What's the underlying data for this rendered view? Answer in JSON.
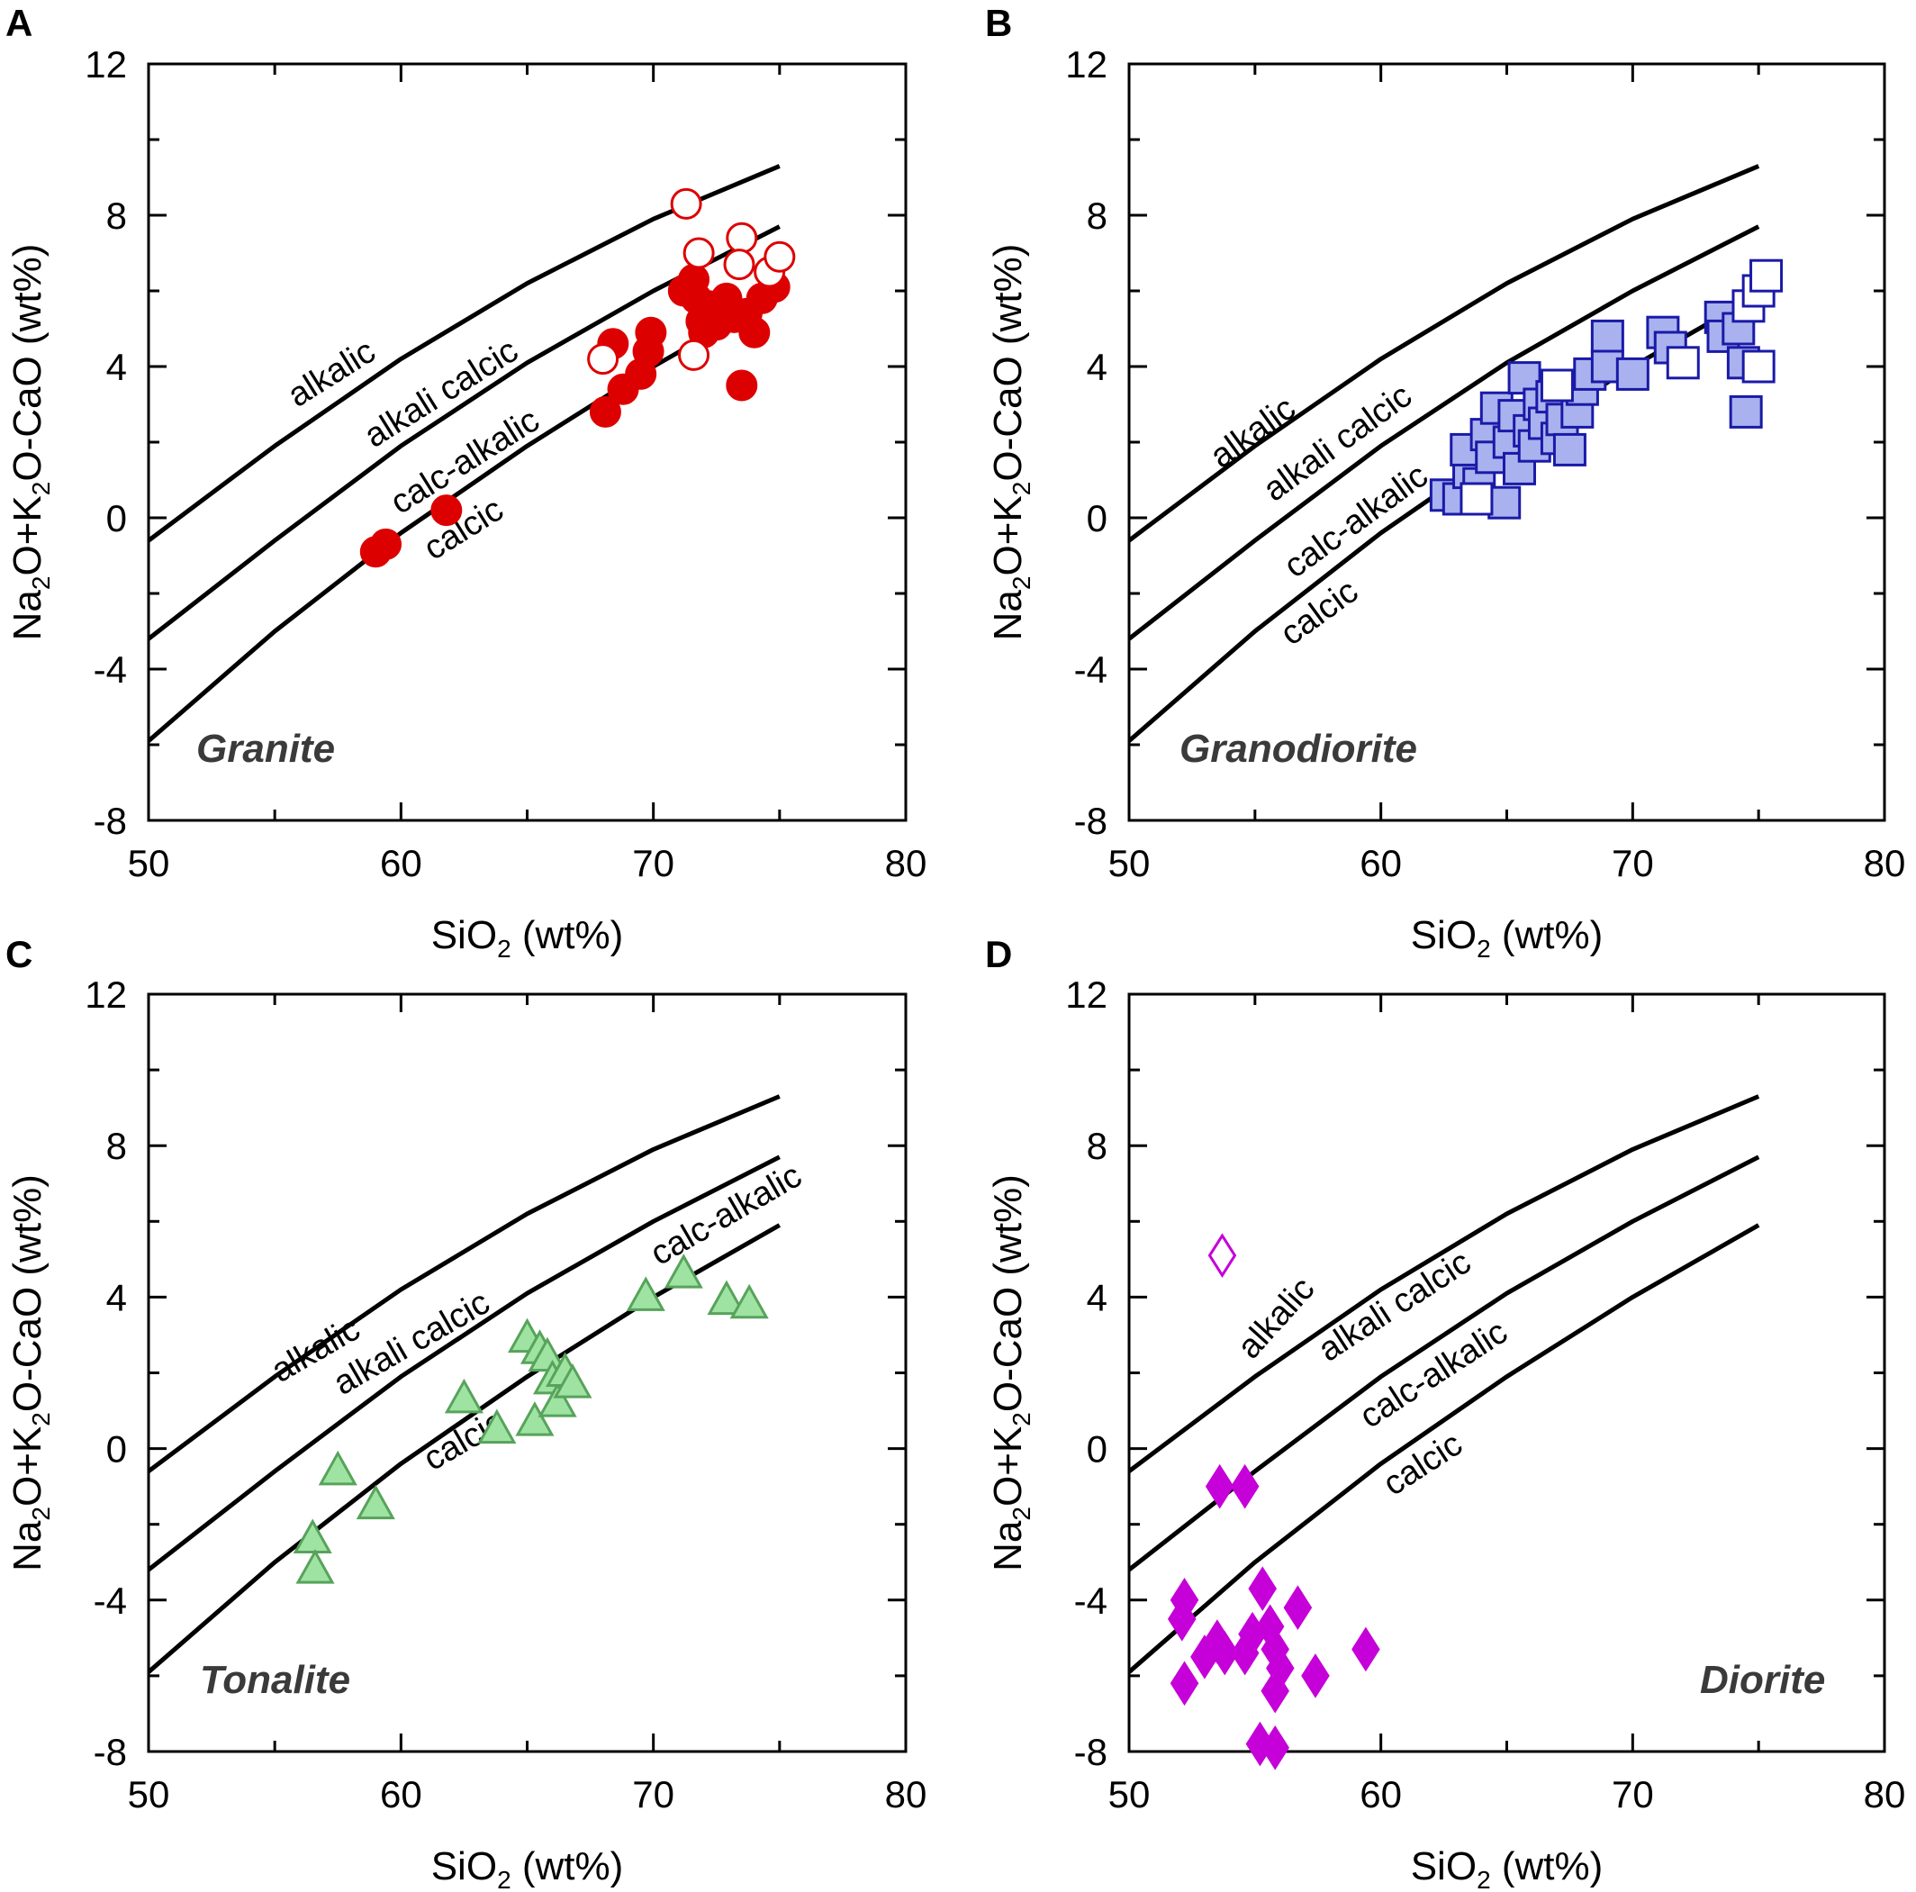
{
  "figure": {
    "panels": [
      {
        "id": "A",
        "rock": "Granite"
      },
      {
        "id": "B",
        "rock": "Granodiorite"
      },
      {
        "id": "C",
        "rock": "Tonalite"
      },
      {
        "id": "D",
        "rock": "Diorite"
      }
    ],
    "xlabel_main": "SiO",
    "xlabel_sub": "2",
    "xlabel_rest": " (wt%)",
    "ylabel_parts": [
      "Na",
      "2",
      "O+K",
      "2",
      "O-CaO (wt%)"
    ],
    "xticks": [
      "50",
      "60",
      "70",
      "80"
    ],
    "yticks": [
      "12",
      "8",
      "4",
      "0",
      "-4",
      "-8"
    ],
    "curve_labels": [
      "alkalic",
      "alkali calcic",
      "calc-alkalic",
      "calcic"
    ],
    "colors": {
      "granite": "#dd0000",
      "granodiorite_fill": "#a9b2ee",
      "granodiorite_edge": "#1a1aa8",
      "tonalite_fill": "#9fe3a3",
      "tonalite_edge": "#57a35b",
      "diorite": "#c500d8",
      "curves": "#000000"
    }
  },
  "chart_data": [
    {
      "type": "scatter",
      "panel": "A",
      "title": "Granite",
      "xlabel": "SiO2 (wt%)",
      "ylabel": "Na2O+K2O-CaO (wt%)",
      "xlim": [
        50,
        80
      ],
      "ylim": [
        -8,
        12
      ],
      "curves": [
        {
          "name": "alkalic",
          "x": [
            50,
            55,
            60,
            65,
            70,
            75
          ],
          "y": [
            -0.6,
            1.9,
            4.2,
            6.2,
            7.9,
            9.3
          ]
        },
        {
          "name": "alkali calcic",
          "x": [
            50,
            55,
            60,
            65,
            70,
            75
          ],
          "y": [
            -3.2,
            -0.6,
            1.9,
            4.1,
            6.0,
            7.7
          ]
        },
        {
          "name": "calc-alkalic",
          "x": [
            50,
            55,
            60,
            65,
            70,
            75
          ],
          "y": [
            -5.9,
            -3.0,
            -0.4,
            1.9,
            4.0,
            5.9
          ]
        }
      ],
      "series": [
        {
          "name": "filled circles",
          "marker": "circle",
          "filled": true,
          "points": [
            [
              59.0,
              -0.9
            ],
            [
              59.4,
              -0.7
            ],
            [
              61.8,
              0.2
            ],
            [
              68.1,
              2.8
            ],
            [
              68.4,
              4.6
            ],
            [
              68.8,
              3.4
            ],
            [
              69.5,
              3.8
            ],
            [
              69.8,
              4.4
            ],
            [
              69.9,
              4.9
            ],
            [
              71.2,
              6.0
            ],
            [
              71.6,
              6.3
            ],
            [
              71.7,
              5.8
            ],
            [
              71.9,
              5.2
            ],
            [
              72.0,
              4.9
            ],
            [
              72.2,
              5.6
            ],
            [
              72.5,
              5.1
            ],
            [
              72.9,
              5.8
            ],
            [
              73.2,
              5.3
            ],
            [
              73.5,
              3.5
            ],
            [
              73.7,
              5.4
            ],
            [
              74.0,
              4.9
            ],
            [
              74.3,
              5.8
            ],
            [
              74.8,
              6.1
            ]
          ]
        },
        {
          "name": "open circles",
          "marker": "circle",
          "filled": false,
          "points": [
            [
              71.3,
              8.3
            ],
            [
              71.8,
              7.0
            ],
            [
              73.5,
              7.4
            ],
            [
              73.4,
              6.7
            ],
            [
              74.6,
              6.5
            ],
            [
              75.0,
              6.9
            ],
            [
              68.0,
              4.2
            ],
            [
              71.6,
              4.3
            ]
          ]
        }
      ]
    },
    {
      "type": "scatter",
      "panel": "B",
      "title": "Granodiorite",
      "xlabel": "SiO2 (wt%)",
      "ylabel": "Na2O+K2O-CaO (wt%)",
      "xlim": [
        50,
        80
      ],
      "ylim": [
        -8,
        12
      ],
      "curves": [
        {
          "name": "alkalic",
          "x": [
            50,
            55,
            60,
            65,
            70,
            75
          ],
          "y": [
            -0.6,
            1.9,
            4.2,
            6.2,
            7.9,
            9.3
          ]
        },
        {
          "name": "alkali calcic",
          "x": [
            50,
            55,
            60,
            65,
            70,
            75
          ],
          "y": [
            -3.2,
            -0.6,
            1.9,
            4.1,
            6.0,
            7.7
          ]
        },
        {
          "name": "calc-alkalic",
          "x": [
            50,
            55,
            60,
            65,
            70,
            75
          ],
          "y": [
            -5.9,
            -3.0,
            -0.4,
            1.9,
            4.0,
            5.9
          ]
        }
      ],
      "series": [
        {
          "name": "filled squares",
          "marker": "square",
          "filled": true,
          "points": [
            [
              62.6,
              0.6
            ],
            [
              63.1,
              0.5
            ],
            [
              63.5,
              1.2
            ],
            [
              63.4,
              1.8
            ],
            [
              63.9,
              0.9
            ],
            [
              64.2,
              2.2
            ],
            [
              64.4,
              1.6
            ],
            [
              64.6,
              2.9
            ],
            [
              64.9,
              0.4
            ],
            [
              65.1,
              2.0
            ],
            [
              65.3,
              2.7
            ],
            [
              65.5,
              1.3
            ],
            [
              65.7,
              3.7
            ],
            [
              65.9,
              2.3
            ],
            [
              66.1,
              1.9
            ],
            [
              66.3,
              3.0
            ],
            [
              66.5,
              2.5
            ],
            [
              66.8,
              3.2
            ],
            [
              67.0,
              2.1
            ],
            [
              67.2,
              2.6
            ],
            [
              67.5,
              1.8
            ],
            [
              67.8,
              2.8
            ],
            [
              68.0,
              3.4
            ],
            [
              68.3,
              3.8
            ],
            [
              69.0,
              4.8
            ],
            [
              69.0,
              4.0
            ],
            [
              70.0,
              3.8
            ],
            [
              71.2,
              4.9
            ],
            [
              71.5,
              4.5
            ],
            [
              73.5,
              5.3
            ],
            [
              73.6,
              4.8
            ],
            [
              74.2,
              5.0
            ],
            [
              74.4,
              4.1
            ],
            [
              74.5,
              2.8
            ]
          ]
        },
        {
          "name": "open squares",
          "marker": "square",
          "filled": false,
          "points": [
            [
              72.0,
              4.1
            ],
            [
              74.6,
              5.6
            ],
            [
              75.0,
              6.0
            ],
            [
              75.3,
              6.4
            ],
            [
              75.0,
              4.0
            ],
            [
              63.8,
              0.5
            ],
            [
              67.0,
              3.5
            ]
          ]
        }
      ]
    },
    {
      "type": "scatter",
      "panel": "C",
      "title": "Tonalite",
      "xlabel": "SiO2 (wt%)",
      "ylabel": "Na2O+K2O-CaO (wt%)",
      "xlim": [
        50,
        80
      ],
      "ylim": [
        -8,
        12
      ],
      "curves": [
        {
          "name": "alkalic",
          "x": [
            50,
            55,
            60,
            65,
            70,
            75
          ],
          "y": [
            -0.6,
            1.9,
            4.2,
            6.2,
            7.9,
            9.3
          ]
        },
        {
          "name": "alkali calcic",
          "x": [
            50,
            55,
            60,
            65,
            70,
            75
          ],
          "y": [
            -3.2,
            -0.6,
            1.9,
            4.1,
            6.0,
            7.7
          ]
        },
        {
          "name": "calc-alkalic",
          "x": [
            50,
            55,
            60,
            65,
            70,
            75
          ],
          "y": [
            -5.9,
            -3.0,
            -0.4,
            1.9,
            4.0,
            5.9
          ]
        }
      ],
      "series": [
        {
          "name": "triangles",
          "marker": "triangle",
          "filled": true,
          "points": [
            [
              56.5,
              -2.4
            ],
            [
              56.6,
              -3.2
            ],
            [
              57.5,
              -0.6
            ],
            [
              59.0,
              -1.5
            ],
            [
              62.5,
              1.3
            ],
            [
              63.8,
              0.5
            ],
            [
              65.0,
              2.9
            ],
            [
              65.3,
              0.7
            ],
            [
              65.5,
              2.6
            ],
            [
              65.8,
              2.4
            ],
            [
              66.0,
              1.8
            ],
            [
              66.2,
              1.2
            ],
            [
              66.5,
              2.0
            ],
            [
              66.8,
              1.7
            ],
            [
              69.7,
              4.0
            ],
            [
              71.2,
              4.6
            ],
            [
              72.9,
              3.9
            ],
            [
              73.8,
              3.8
            ]
          ]
        }
      ]
    },
    {
      "type": "scatter",
      "panel": "D",
      "title": "Diorite",
      "xlabel": "SiO2 (wt%)",
      "ylabel": "Na2O+K2O-CaO (wt%)",
      "xlim": [
        50,
        80
      ],
      "ylim": [
        -8,
        12
      ],
      "curves": [
        {
          "name": "alkalic",
          "x": [
            50,
            55,
            60,
            65,
            70,
            75
          ],
          "y": [
            -0.6,
            1.9,
            4.2,
            6.2,
            7.9,
            9.3
          ]
        },
        {
          "name": "alkali calcic",
          "x": [
            50,
            55,
            60,
            65,
            70,
            75
          ],
          "y": [
            -3.2,
            -0.6,
            1.9,
            4.1,
            6.0,
            7.7
          ]
        },
        {
          "name": "calc-alkalic",
          "x": [
            50,
            55,
            60,
            65,
            70,
            75
          ],
          "y": [
            -5.9,
            -3.0,
            -0.4,
            1.9,
            4.0,
            5.9
          ]
        }
      ],
      "series": [
        {
          "name": "filled diamonds",
          "marker": "diamond",
          "filled": true,
          "points": [
            [
              53.6,
              -1.0
            ],
            [
              54.6,
              -1.0
            ],
            [
              52.2,
              -4.0
            ],
            [
              52.1,
              -4.5
            ],
            [
              52.2,
              -6.2
            ],
            [
              53.0,
              -5.5
            ],
            [
              53.5,
              -5.1
            ],
            [
              53.8,
              -5.4
            ],
            [
              54.6,
              -5.4
            ],
            [
              54.9,
              -4.9
            ],
            [
              55.3,
              -3.7
            ],
            [
              55.6,
              -4.7
            ],
            [
              55.8,
              -5.3
            ],
            [
              56.0,
              -5.8
            ],
            [
              55.8,
              -6.4
            ],
            [
              56.7,
              -4.2
            ],
            [
              57.4,
              -6.0
            ],
            [
              59.4,
              -5.3
            ],
            [
              55.2,
              -7.8
            ],
            [
              55.8,
              -7.9
            ]
          ]
        },
        {
          "name": "open diamond",
          "marker": "diamond",
          "filled": false,
          "points": [
            [
              53.7,
              5.1
            ]
          ]
        }
      ]
    }
  ]
}
